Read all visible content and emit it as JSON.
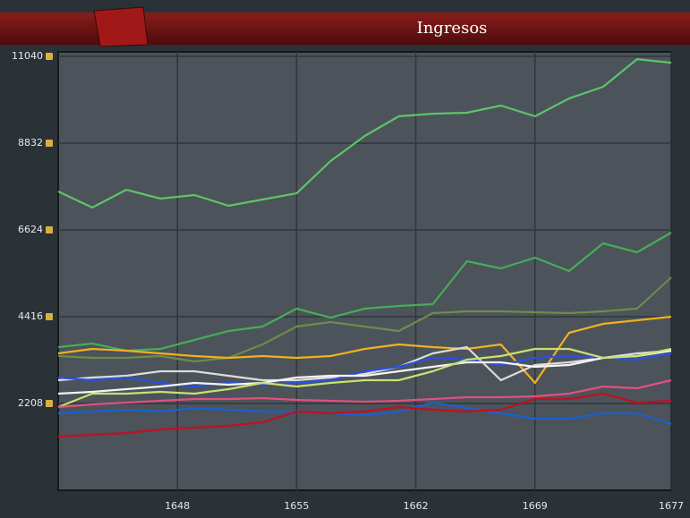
{
  "chart_data": {
    "type": "line",
    "title": "Ingresos",
    "x": [
      1641,
      1643,
      1645,
      1647,
      1649,
      1651,
      1653,
      1655,
      1657,
      1659,
      1661,
      1663,
      1665,
      1667,
      1669,
      1671,
      1673,
      1675,
      1677
    ],
    "xlim": [
      1641,
      1677
    ],
    "xticks": [
      1648,
      1655,
      1662,
      1669,
      1677
    ],
    "ylim": [
      0,
      11040
    ],
    "yticks": [
      2208,
      4416,
      6624,
      8832,
      11040
    ],
    "grid": true,
    "series": [
      {
        "color": "#5cc46a",
        "values": [
          7602,
          7192,
          7647,
          7420,
          7511,
          7238,
          7397,
          7556,
          8376,
          9013,
          9514,
          9582,
          9605,
          9787,
          9514,
          9969,
          10265,
          10970,
          10879
        ]
      },
      {
        "color": "#46ac58",
        "values": [
          3642,
          3733,
          3551,
          3596,
          3824,
          4051,
          4165,
          4620,
          4393,
          4620,
          4689,
          4734,
          5827,
          5645,
          5918,
          5576,
          6282,
          6054,
          6555
        ]
      },
      {
        "color": "#6c8c4c",
        "values": [
          3414,
          3368,
          3368,
          3414,
          3277,
          3368,
          3710,
          4165,
          4279,
          4165,
          4051,
          4506,
          4552,
          4552,
          4529,
          4506,
          4552,
          4620,
          5417
        ]
      },
      {
        "color": "#f0b020",
        "values": [
          3482,
          3596,
          3551,
          3482,
          3414,
          3368,
          3414,
          3368,
          3414,
          3596,
          3710,
          3642,
          3596,
          3710,
          2731,
          4006,
          4233,
          4324,
          4415
        ]
      },
      {
        "color": "#dcdcdc",
        "values": [
          2799,
          2868,
          2913,
          3027,
          3027,
          2913,
          2799,
          2799,
          2868,
          2959,
          3141,
          3482,
          3642,
          2799,
          3186,
          3255,
          3368,
          3482,
          3551
        ]
      },
      {
        "color": "#2a50e0",
        "values": [
          2868,
          2799,
          2868,
          2731,
          2640,
          2731,
          2686,
          2731,
          2799,
          3027,
          3141,
          3368,
          3323,
          3186,
          3368,
          3414,
          3368,
          3323,
          3482
        ]
      },
      {
        "color": "#f4f4f4",
        "values": [
          2458,
          2504,
          2572,
          2640,
          2731,
          2686,
          2731,
          2868,
          2913,
          2913,
          3027,
          3141,
          3255,
          3255,
          3141,
          3186,
          3368,
          3414,
          3551
        ]
      },
      {
        "color": "#c8e070",
        "values": [
          2117,
          2458,
          2458,
          2504,
          2458,
          2572,
          2731,
          2640,
          2731,
          2799,
          2799,
          3027,
          3323,
          3414,
          3596,
          3596,
          3368,
          3414,
          3596
        ]
      },
      {
        "color": "#e05080",
        "values": [
          2117,
          2185,
          2230,
          2276,
          2322,
          2322,
          2344,
          2299,
          2276,
          2253,
          2276,
          2322,
          2367,
          2367,
          2390,
          2458,
          2640,
          2595,
          2799
        ]
      },
      {
        "color": "#1a60d0",
        "values": [
          1957,
          2003,
          2048,
          2003,
          2094,
          2048,
          2003,
          2003,
          1957,
          1912,
          2003,
          2230,
          2094,
          1957,
          1821,
          1821,
          1957,
          1957,
          1684
        ]
      },
      {
        "color": "#c01020",
        "values": [
          1366,
          1411,
          1457,
          1548,
          1593,
          1639,
          1730,
          2003,
          1957,
          2003,
          2117,
          2048,
          2003,
          2048,
          2322,
          2322,
          2458,
          2230,
          2276
        ]
      }
    ]
  }
}
